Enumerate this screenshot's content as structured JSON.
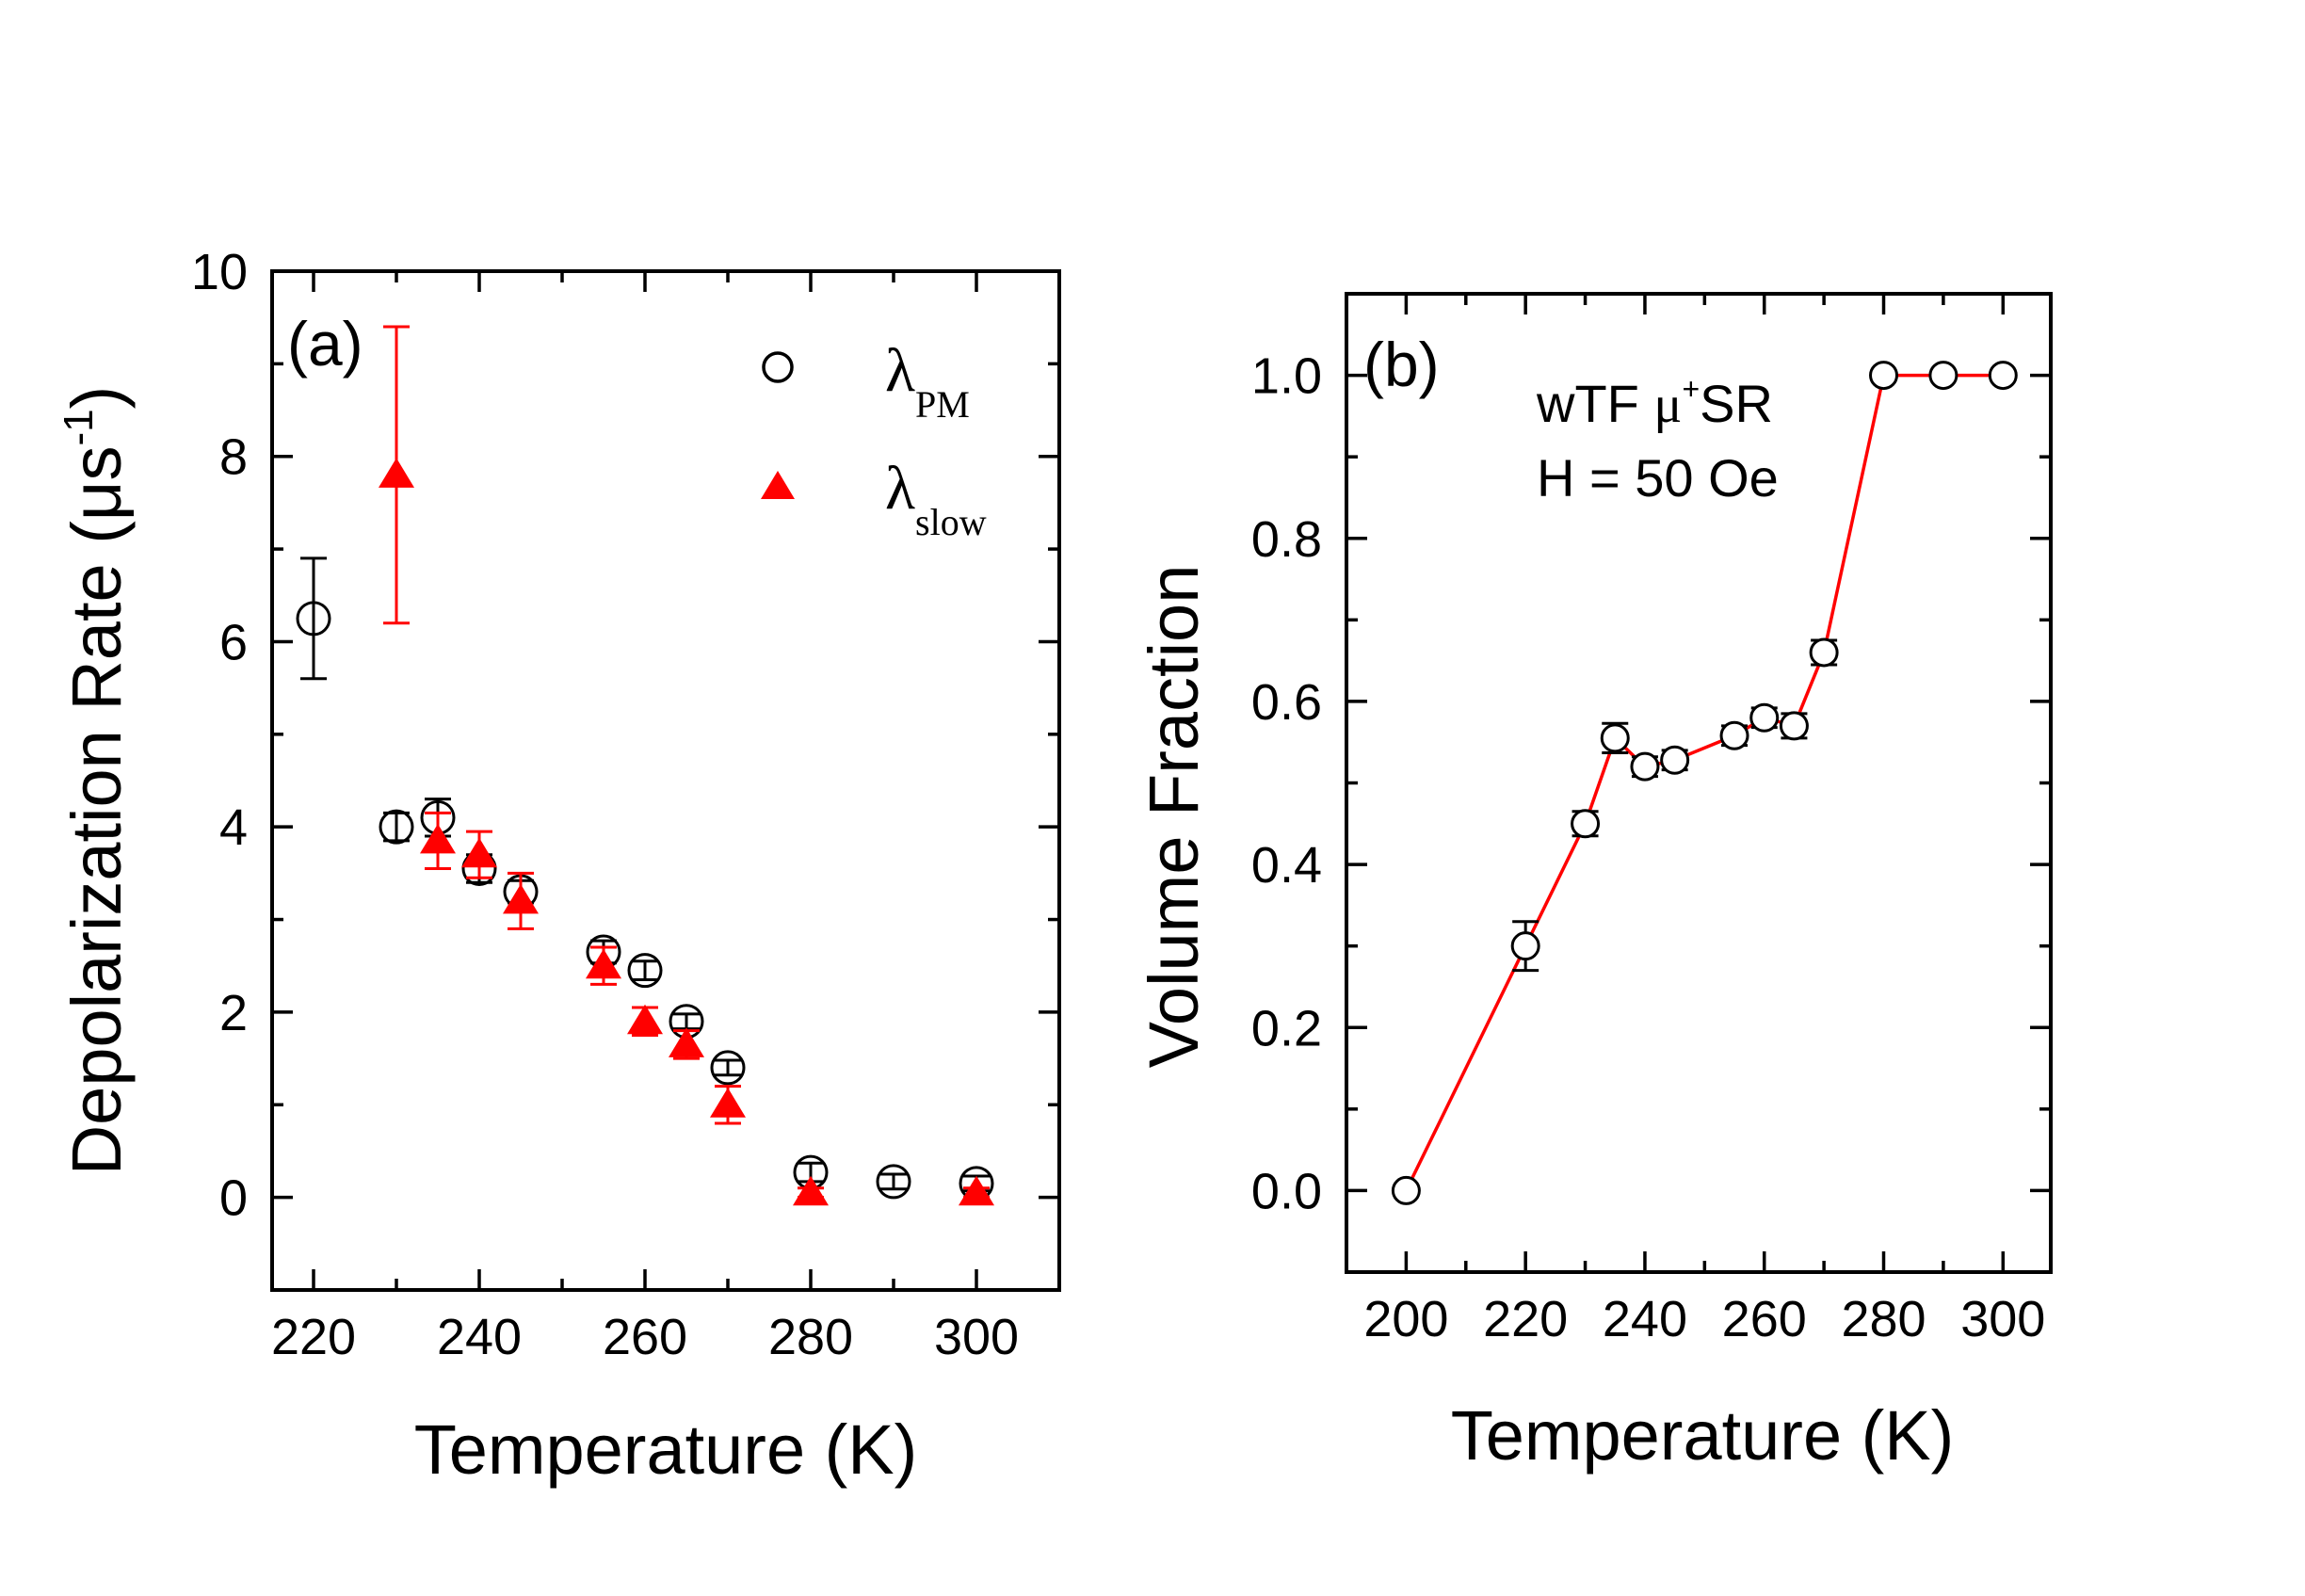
{
  "chart_data": [
    {
      "type": "scatter",
      "panel_label": "(a)",
      "xlabel": "Temperature (K)",
      "ylabel_main": "Depolarization Rate (",
      "ylabel_unit": "μs",
      "ylabel_sup": "-1",
      "ylabel_close": ")",
      "xlim": [
        215,
        310
      ],
      "ylim": [
        -1,
        10
      ],
      "xticks": [
        220,
        240,
        260,
        280,
        300
      ],
      "yticks": [
        0,
        2,
        4,
        6,
        8,
        10
      ],
      "legend": [
        {
          "symbol": "λ",
          "sub": "PM",
          "marker": "open-circle"
        },
        {
          "symbol": "λ",
          "sub": "slow",
          "marker": "filled-triangle"
        }
      ],
      "series": [
        {
          "name": "λPM",
          "marker": "open-circle",
          "color": "#000000",
          "x": [
            220,
            230,
            235,
            240,
            245,
            255,
            260,
            265,
            270,
            280,
            290,
            300
          ],
          "y": [
            6.25,
            4.0,
            4.1,
            3.55,
            3.3,
            2.65,
            2.45,
            1.9,
            1.4,
            0.27,
            0.17,
            0.15
          ],
          "err": [
            0.65,
            0.15,
            0.2,
            0.15,
            0.12,
            0.12,
            0.1,
            0.08,
            0.08,
            0.1,
            0.08,
            0.08
          ]
        },
        {
          "name": "λslow",
          "marker": "filled-triangle",
          "color": "#ff0000",
          "x": [
            230,
            235,
            240,
            245,
            255,
            260,
            265,
            270,
            280,
            300
          ],
          "y": [
            7.8,
            3.85,
            3.7,
            3.2,
            2.5,
            1.9,
            1.65,
            1.0,
            0.05,
            0.05
          ],
          "err": [
            1.6,
            0.3,
            0.25,
            0.3,
            0.2,
            0.15,
            0.15,
            0.2,
            0.05,
            0.05
          ]
        }
      ]
    },
    {
      "type": "line",
      "panel_label": "(b)",
      "annotation_line1_a": "wTF ",
      "annotation_line1_mu": "μ",
      "annotation_line1_sup": "+",
      "annotation_line1_b": "SR",
      "annotation_line2": "H = 50 Oe",
      "xlabel": "Temperature (K)",
      "ylabel": "Volume Fraction",
      "xlim": [
        190,
        308
      ],
      "ylim": [
        -0.1,
        1.1
      ],
      "xticks": [
        200,
        220,
        240,
        260,
        280,
        300
      ],
      "yticks": [
        "0.0",
        "0.2",
        "0.4",
        "0.6",
        "0.8",
        "1.0"
      ],
      "series": [
        {
          "name": "Volume Fraction",
          "marker": "open-circle",
          "line_color": "#ff0000",
          "x": [
            200,
            220,
            230,
            235,
            240,
            245,
            255,
            260,
            265,
            270,
            280,
            290,
            300
          ],
          "y": [
            0.0,
            0.3,
            0.45,
            0.555,
            0.52,
            0.528,
            0.558,
            0.58,
            0.57,
            0.66,
            1.0,
            1.0,
            1.0
          ],
          "err": [
            0.0,
            0.03,
            0.015,
            0.018,
            0.012,
            0.012,
            0.012,
            0.012,
            0.015,
            0.015,
            0.005,
            0.005,
            0.005
          ]
        }
      ]
    }
  ]
}
